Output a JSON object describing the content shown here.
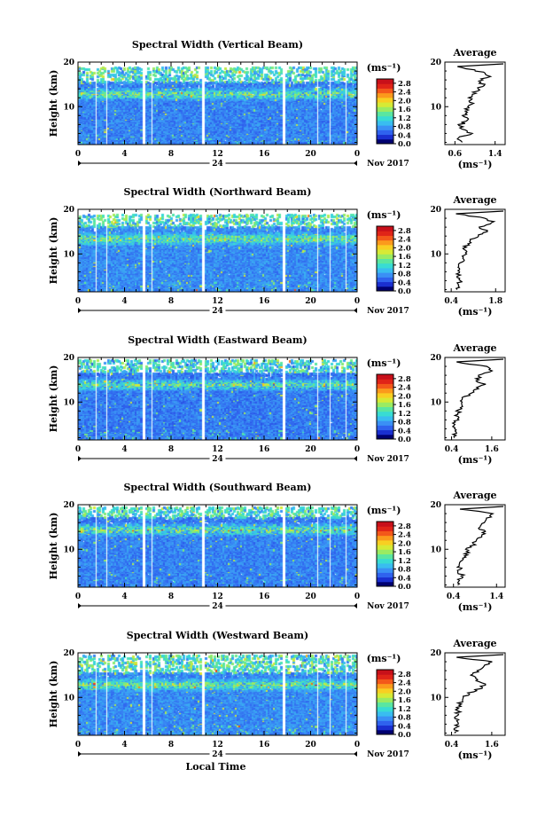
{
  "figure": {
    "xlabel": "Local Time",
    "ylabel": "Height (km)",
    "date_label": "Nov 2017",
    "day_label": "24",
    "colorbar_unit": "(ms⁻¹)",
    "colorbar_ticks": [
      "0.0",
      "0.4",
      "0.8",
      "1.2",
      "1.6",
      "2.0",
      "2.4",
      "2.8"
    ],
    "colorbar_colors": [
      "#000070",
      "#1a2fd0",
      "#2f62ee",
      "#3a90f5",
      "#39bdf0",
      "#38dcd3",
      "#5ae6a0",
      "#9aeb62",
      "#d6ea35",
      "#f8cf22",
      "#fb9a1c",
      "#f3581a",
      "#e02418",
      "#c8101a"
    ],
    "average_title": "Average",
    "average_unit": "(ms⁻¹)"
  },
  "chart_data": [
    {
      "type": "heatmap",
      "title": "Spectral Width (Vertical Beam)",
      "xlabel": "",
      "ylabel": "Height (km)",
      "x_ticks": [
        "0",
        "4",
        "8",
        "12",
        "16",
        "20",
        "0"
      ],
      "xlim": [
        0,
        24
      ],
      "y_ticks": [
        "10",
        "20"
      ],
      "ylim": [
        1.5,
        20
      ],
      "colorbar_range": [
        0,
        3.0
      ],
      "gaps_hours": [
        [
          1.5,
          1.7
        ],
        [
          2.4,
          2.6
        ],
        [
          5.5,
          5.8
        ],
        [
          6.3,
          6.5
        ],
        [
          10.6,
          10.9
        ],
        [
          17.6,
          17.8
        ],
        [
          20.5,
          20.7
        ],
        [
          21.6,
          21.8
        ],
        [
          22.9,
          23.1
        ]
      ],
      "data_top_km": 15.5,
      "sparse_top_km": 19.0,
      "mean_level": 0.45,
      "average_profile": {
        "xlim": [
          0.4,
          1.6
        ],
        "x_ticks": [
          "0.6",
          "1.4"
        ],
        "heights": [
          2,
          3,
          4,
          5,
          6,
          7,
          8,
          9,
          10,
          11,
          12,
          13,
          14,
          15,
          16,
          17,
          18,
          19
        ],
        "values": [
          0.75,
          0.65,
          0.95,
          0.7,
          0.72,
          0.85,
          0.78,
          0.82,
          0.9,
          0.95,
          0.88,
          1.0,
          1.05,
          1.15,
          1.1,
          1.3,
          1.05,
          0.65
        ]
      }
    },
    {
      "type": "heatmap",
      "title": "Spectral Width (Northward Beam)",
      "xlabel": "",
      "ylabel": "Height (km)",
      "x_ticks": [
        "0",
        "4",
        "8",
        "12",
        "16",
        "20",
        "0"
      ],
      "xlim": [
        0,
        24
      ],
      "y_ticks": [
        "10",
        "20"
      ],
      "ylim": [
        1.5,
        20
      ],
      "colorbar_range": [
        0,
        3.0
      ],
      "gaps_hours": [
        [
          1.5,
          1.7
        ],
        [
          2.4,
          2.6
        ],
        [
          5.5,
          5.8
        ],
        [
          6.3,
          6.5
        ],
        [
          10.6,
          10.9
        ],
        [
          17.6,
          17.8
        ],
        [
          20.5,
          20.7
        ],
        [
          21.6,
          21.8
        ],
        [
          22.9,
          23.1
        ]
      ],
      "data_top_km": 16.0,
      "sparse_top_km": 19.0,
      "mean_level": 0.5,
      "average_profile": {
        "xlim": [
          0.2,
          2.1
        ],
        "x_ticks": [
          "0.4",
          "1.8"
        ],
        "heights": [
          2,
          3,
          4,
          5,
          6,
          7,
          8,
          9,
          10,
          11,
          12,
          13,
          14,
          15,
          16,
          17,
          18,
          19
        ],
        "values": [
          0.65,
          0.55,
          0.75,
          0.6,
          0.65,
          0.7,
          0.72,
          0.75,
          0.8,
          0.85,
          0.9,
          1.0,
          1.2,
          1.55,
          1.3,
          1.75,
          1.5,
          0.55
        ]
      }
    },
    {
      "type": "heatmap",
      "title": "Spectral Width (Eastward Beam)",
      "xlabel": "",
      "ylabel": "Height (km)",
      "x_ticks": [
        "0",
        "4",
        "8",
        "12",
        "16",
        "20",
        "0"
      ],
      "xlim": [
        0,
        24
      ],
      "y_ticks": [
        "10",
        "20"
      ],
      "ylim": [
        1.5,
        20
      ],
      "colorbar_range": [
        0,
        3.0
      ],
      "gaps_hours": [
        [
          1.5,
          1.7
        ],
        [
          2.4,
          2.6
        ],
        [
          5.5,
          5.8
        ],
        [
          6.3,
          6.5
        ],
        [
          10.6,
          10.9
        ],
        [
          17.6,
          17.8
        ],
        [
          20.5,
          20.7
        ],
        [
          21.6,
          21.8
        ],
        [
          22.9,
          23.1
        ]
      ],
      "data_top_km": 16.5,
      "sparse_top_km": 19.5,
      "mean_level": 0.42,
      "average_profile": {
        "xlim": [
          0.2,
          2.0
        ],
        "x_ticks": [
          "0.4",
          "1.6"
        ],
        "heights": [
          2,
          3,
          4,
          5,
          6,
          7,
          8,
          9,
          10,
          11,
          12,
          13,
          14,
          15,
          16,
          17,
          18,
          19
        ],
        "values": [
          0.5,
          0.52,
          0.55,
          0.5,
          0.55,
          0.58,
          0.62,
          0.65,
          0.7,
          0.8,
          0.95,
          1.2,
          1.35,
          1.15,
          1.25,
          1.55,
          1.45,
          0.55
        ]
      }
    },
    {
      "type": "heatmap",
      "title": "Spectral Width (Southward Beam)",
      "xlabel": "",
      "ylabel": "Height (km)",
      "x_ticks": [
        "0",
        "4",
        "8",
        "12",
        "16",
        "20",
        "0"
      ],
      "xlim": [
        0,
        24
      ],
      "y_ticks": [
        "10",
        "20"
      ],
      "ylim": [
        1.5,
        20
      ],
      "colorbar_range": [
        0,
        3.0
      ],
      "gaps_hours": [
        [
          1.5,
          1.7
        ],
        [
          2.4,
          2.6
        ],
        [
          5.5,
          5.8
        ],
        [
          6.3,
          6.5
        ],
        [
          10.6,
          10.9
        ],
        [
          17.6,
          17.8
        ],
        [
          20.5,
          20.7
        ],
        [
          21.6,
          21.8
        ],
        [
          22.9,
          23.1
        ]
      ],
      "data_top_km": 17.0,
      "sparse_top_km": 19.5,
      "mean_level": 0.45,
      "average_profile": {
        "xlim": [
          0.2,
          1.6
        ],
        "x_ticks": [
          "0.4",
          "1.4"
        ],
        "heights": [
          2,
          3,
          4,
          5,
          6,
          7,
          8,
          9,
          10,
          11,
          12,
          13,
          14,
          15,
          16,
          17,
          18,
          19
        ],
        "values": [
          0.55,
          0.5,
          0.6,
          0.52,
          0.55,
          0.6,
          0.65,
          0.7,
          0.75,
          0.85,
          0.95,
          1.05,
          1.1,
          1.0,
          1.1,
          1.2,
          1.3,
          0.55
        ]
      }
    },
    {
      "type": "heatmap",
      "title": "Spectral Width (Westward Beam)",
      "xlabel": "Local Time",
      "ylabel": "Height (km)",
      "x_ticks": [
        "0",
        "4",
        "8",
        "12",
        "16",
        "20",
        "0"
      ],
      "xlim": [
        0,
        24
      ],
      "y_ticks": [
        "10",
        "20"
      ],
      "ylim": [
        1.5,
        20
      ],
      "colorbar_range": [
        0,
        3.0
      ],
      "gaps_hours": [
        [
          1.5,
          1.7
        ],
        [
          2.4,
          2.6
        ],
        [
          5.5,
          5.8
        ],
        [
          6.3,
          6.5
        ],
        [
          10.6,
          10.9
        ],
        [
          17.6,
          17.8
        ],
        [
          20.5,
          20.7
        ],
        [
          21.6,
          21.8
        ],
        [
          22.9,
          23.1
        ]
      ],
      "data_top_km": 15.5,
      "sparse_top_km": 19.5,
      "mean_level": 0.5,
      "average_profile": {
        "xlim": [
          0.2,
          2.0
        ],
        "x_ticks": [
          "0.4",
          "1.6"
        ],
        "heights": [
          2,
          3,
          4,
          5,
          6,
          7,
          8,
          9,
          10,
          11,
          12,
          13,
          14,
          15,
          16,
          17,
          18,
          19
        ],
        "values": [
          0.55,
          0.5,
          0.55,
          0.52,
          0.55,
          0.6,
          0.62,
          0.65,
          0.75,
          0.9,
          1.25,
          1.35,
          1.1,
          1.0,
          1.2,
          1.4,
          1.6,
          0.55
        ]
      }
    }
  ]
}
